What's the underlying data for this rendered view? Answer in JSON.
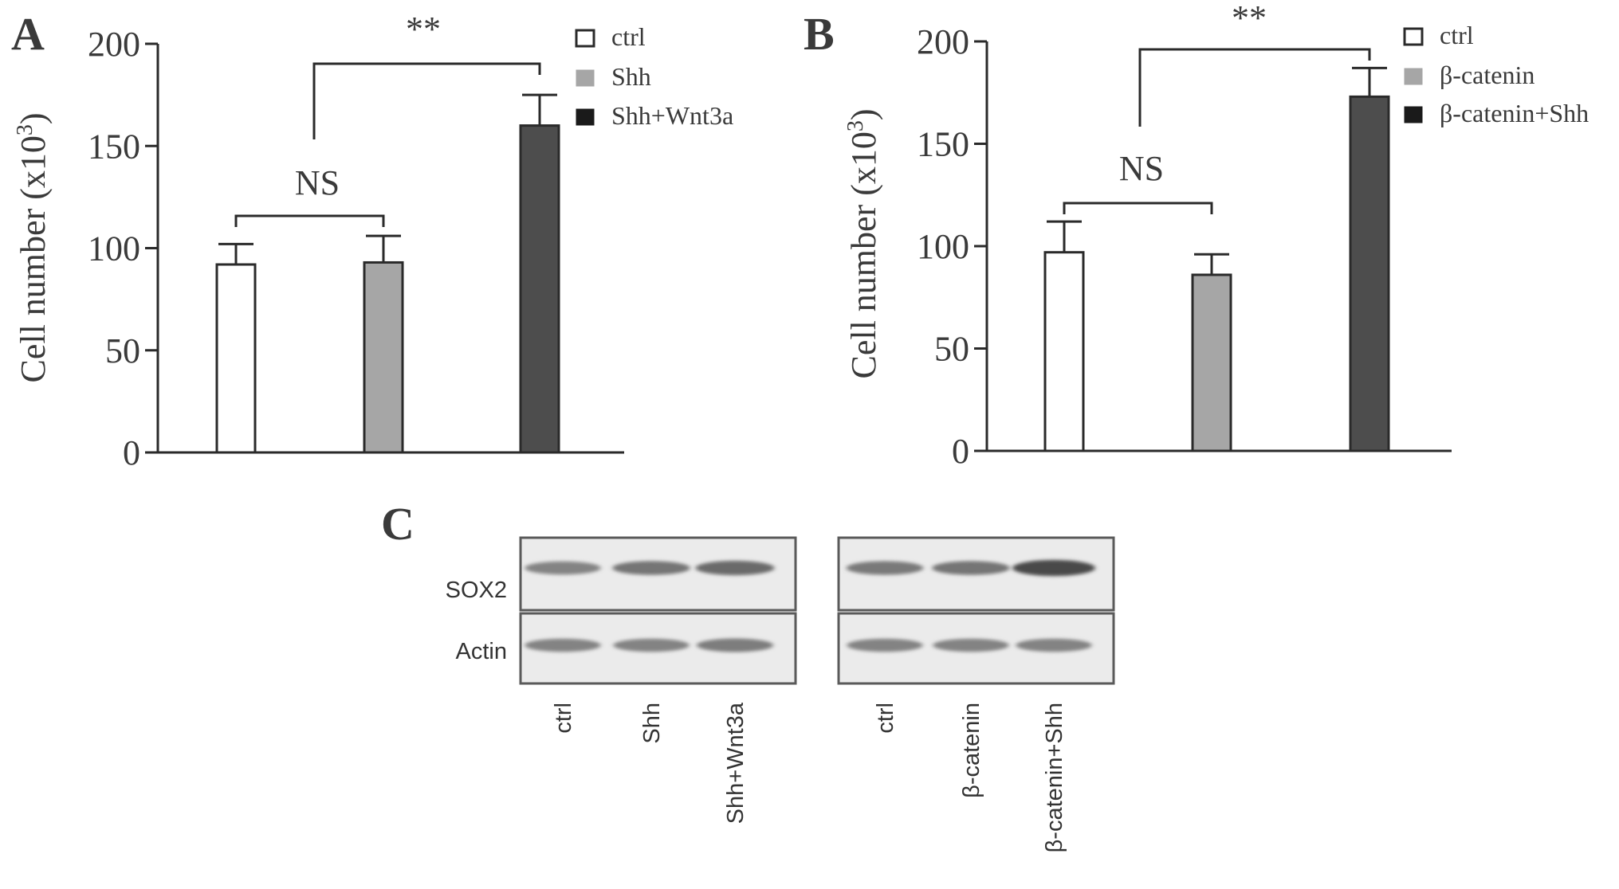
{
  "colors": {
    "ctrl": "#ffffff",
    "treat1": "#a6a6a6",
    "treat2": "#4d4d4d",
    "axis": "#2a2a2a",
    "legend_dark": "#1a1a1a"
  },
  "chart_data": [
    {
      "panel": "A",
      "type": "bar",
      "categories": [
        "ctrl",
        "Shh",
        "Shh+Wnt3a"
      ],
      "values": [
        92,
        93,
        160
      ],
      "errors": [
        10,
        13,
        15
      ],
      "ylabel_main": "Cell number (x10",
      "ylabel_sup": "3",
      "ylabel_close": ")",
      "ylim": [
        0,
        200
      ],
      "yticks": [
        "0",
        "50",
        "100",
        "150",
        "200"
      ],
      "legend": [
        "ctrl",
        "Shh",
        "Shh+Wnt3a"
      ],
      "legend_position": "top-right",
      "annotations": [
        {
          "text": "NS",
          "from": 0,
          "to": 1
        },
        {
          "text": "**",
          "from": 1,
          "to": 2
        }
      ]
    },
    {
      "panel": "B",
      "type": "bar",
      "categories": [
        "ctrl",
        "β-catenin",
        "β-catenin+Shh"
      ],
      "values": [
        97,
        86,
        173
      ],
      "errors": [
        15,
        10,
        14
      ],
      "ylabel_main": "Cell number (x10",
      "ylabel_sup": "3",
      "ylabel_close": ")",
      "ylim": [
        0,
        200
      ],
      "yticks": [
        "0",
        "50",
        "100",
        "150",
        "200"
      ],
      "legend": [
        "ctrl",
        "β-catenin",
        "β-catenin+Shh"
      ],
      "legend_position": "top-right",
      "annotations": [
        {
          "text": "NS",
          "from": 0,
          "to": 1
        },
        {
          "text": "**",
          "from": 1,
          "to": 2
        }
      ]
    }
  ],
  "blot": {
    "panel": "C",
    "rows": [
      "SOX2",
      "Actin"
    ],
    "left_lanes": [
      "ctrl",
      "Shh",
      "Shh+Wnt3a"
    ],
    "right_lanes": [
      "ctrl",
      "β-catenin",
      "β-catenin+Shh"
    ],
    "sox2_band_intensity_left": [
      0.55,
      0.62,
      0.68
    ],
    "sox2_band_intensity_right": [
      0.6,
      0.62,
      0.85
    ],
    "actin_band_intensity_left": [
      0.55,
      0.55,
      0.58
    ],
    "actin_band_intensity_right": [
      0.55,
      0.55,
      0.55
    ]
  }
}
